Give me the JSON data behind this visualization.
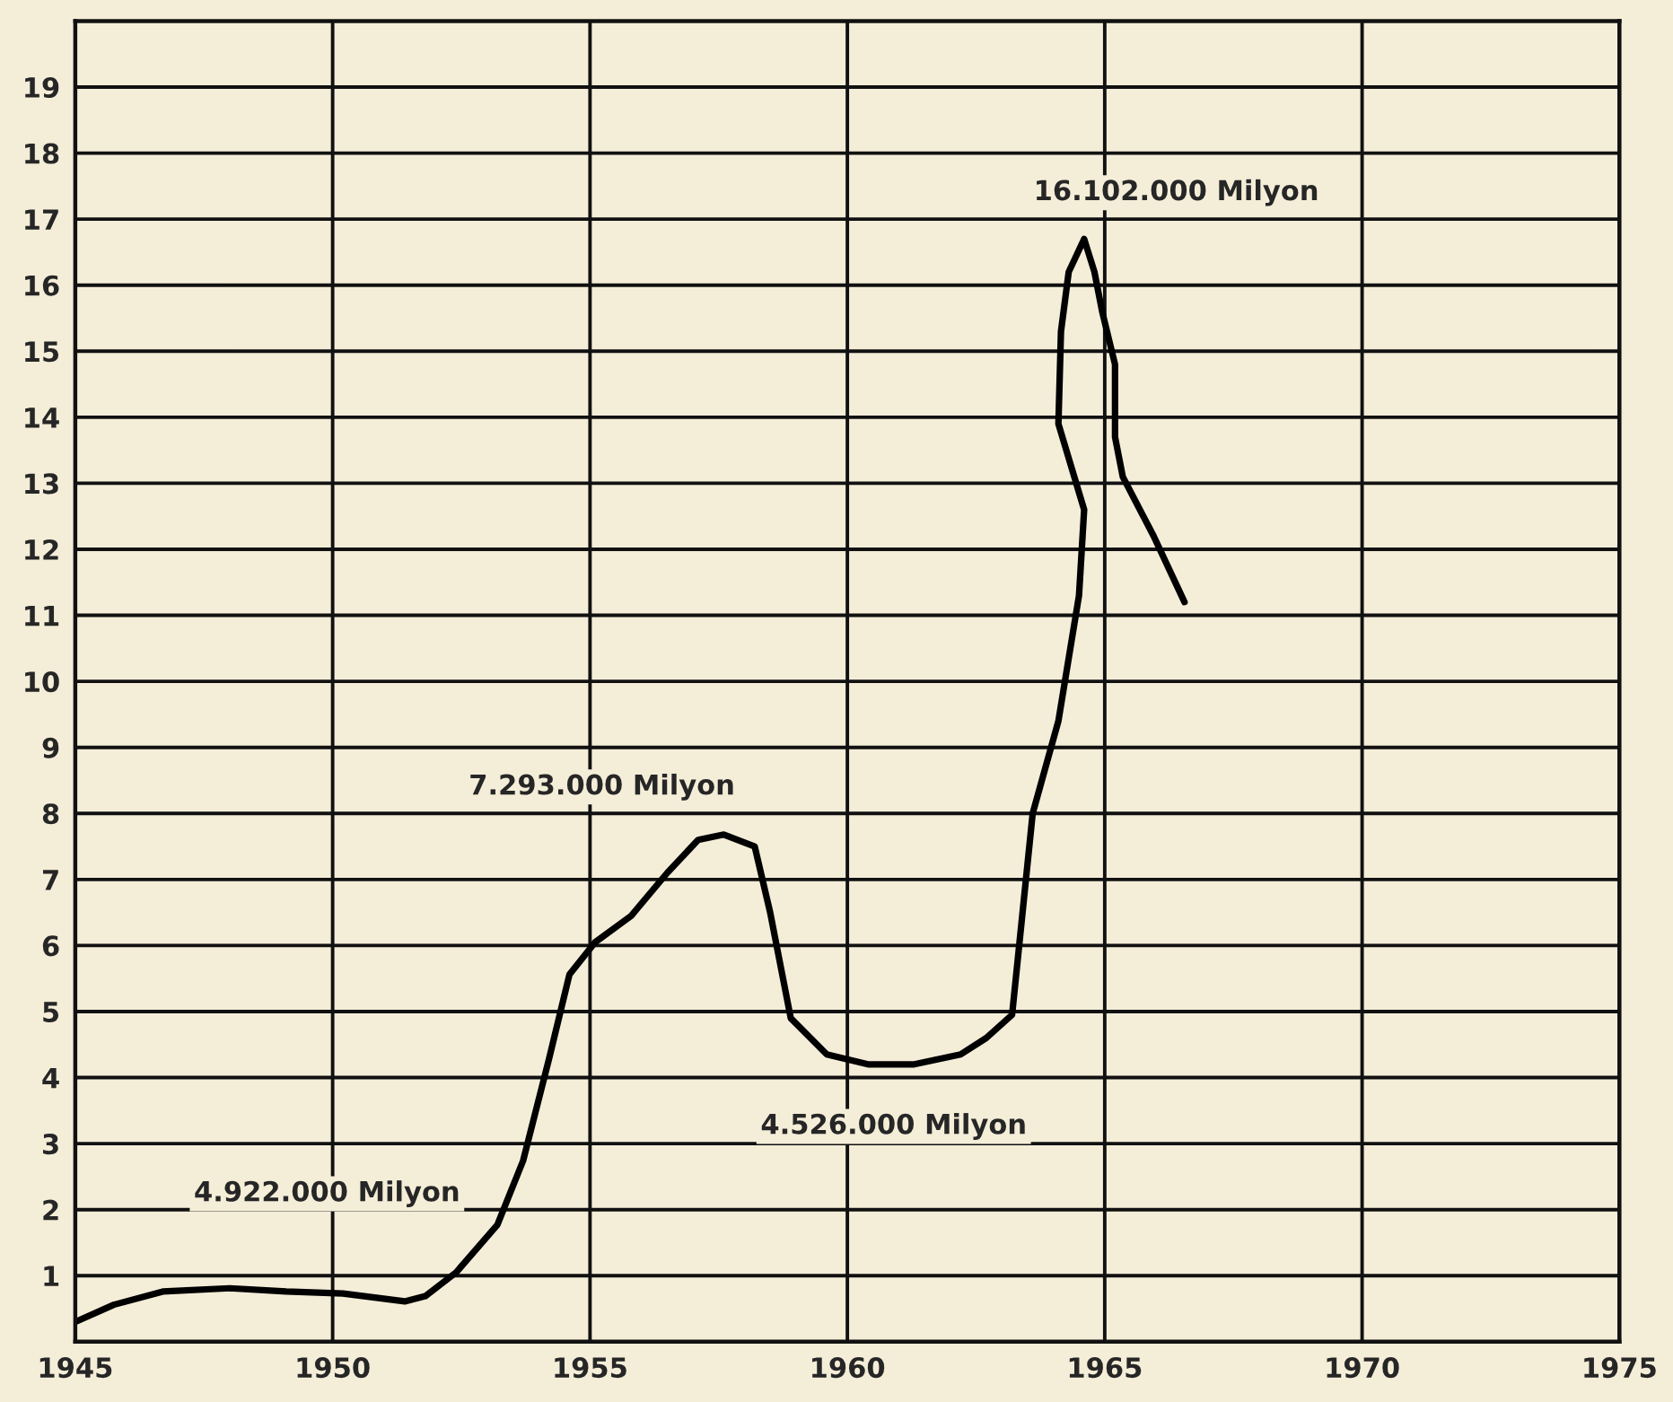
{
  "chart_data": {
    "type": "line",
    "x": [
      1945,
      1945.75,
      1946.7,
      1948,
      1949.1,
      1950.2,
      1951.4,
      1951.8,
      1952.4,
      1953.2,
      1953.7,
      1954.2,
      1954.6,
      1955.1,
      1955.8,
      1956.5,
      1957.1,
      1957.6,
      1958.2,
      1958.5,
      1958.9,
      1959.6,
      1960.4,
      1961.3,
      1962.2,
      1962.7,
      1963.2,
      1963.6,
      1964.1,
      1964.5,
      1964.6,
      1964.1,
      1964.15,
      1964.3,
      1964.6,
      1964.8,
      1964.95,
      1965.2,
      1965.2,
      1965.35,
      1965.95,
      1966.55
    ],
    "series": [
      {
        "color": "#000000",
        "values": [
          0.3,
          0.56,
          0.76,
          0.81,
          0.76,
          0.73,
          0.61,
          0.69,
          1.05,
          1.77,
          2.74,
          4.27,
          5.56,
          6.05,
          6.45,
          7.1,
          7.6,
          7.68,
          7.5,
          6.5,
          4.9,
          4.35,
          4.2,
          4.2,
          4.35,
          4.6,
          4.95,
          8.0,
          9.4,
          11.3,
          12.6,
          13.9,
          15.3,
          16.2,
          16.7,
          16.2,
          15.6,
          14.8,
          13.7,
          13.1,
          12.2,
          11.2
        ]
      }
    ],
    "xlim": [
      1945,
      1975
    ],
    "xticks": [
      1945,
      1950,
      1955,
      1960,
      1965,
      1970,
      1975
    ],
    "ylim": [
      0,
      20
    ],
    "yticks": [
      1,
      2,
      3,
      4,
      5,
      6,
      7,
      8,
      9,
      10,
      11,
      12,
      13,
      14,
      15,
      16,
      17,
      18,
      19
    ],
    "grid": true,
    "marker": "none",
    "line_style": "solid",
    "annotations": [
      "4.922.000 Milyon",
      "7.293.000 Milyon",
      "4.526.000 Milyon",
      "16.102.000 Milyon"
    ]
  }
}
